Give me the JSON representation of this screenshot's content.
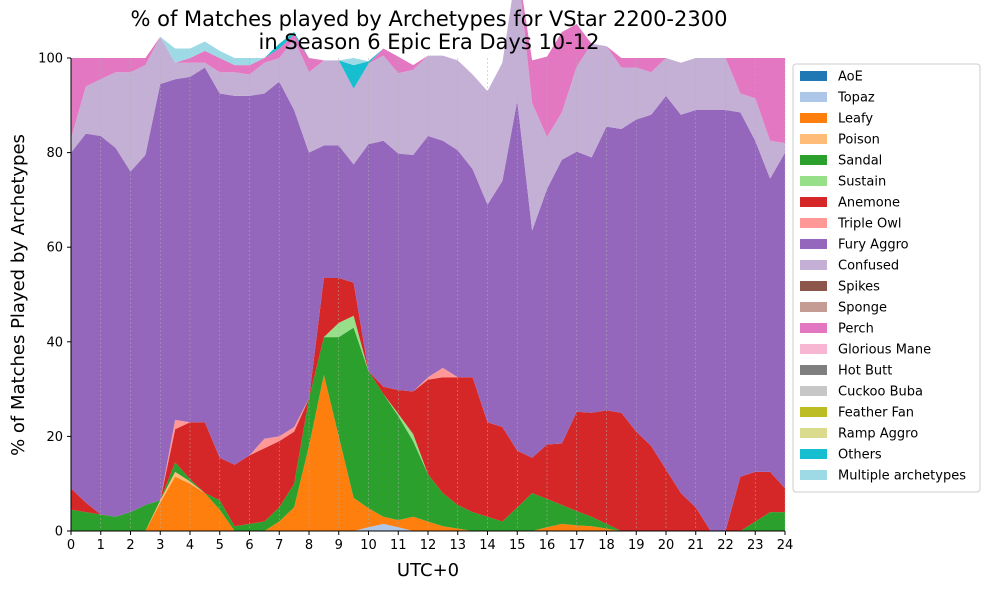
{
  "chart_data": {
    "type": "area",
    "title_lines": [
      "% of Matches played by Archetypes for VStar 2200-2300",
      "in Season 6 Epic Era Days 10-12"
    ],
    "xlabel": "UTC+0",
    "ylabel": "% of Matches Played by Archetypes",
    "xlim": [
      0,
      24
    ],
    "ylim": [
      0,
      100
    ],
    "xticks": [
      "0",
      "1",
      "2",
      "3",
      "4",
      "5",
      "6",
      "7",
      "8",
      "9",
      "10",
      "11",
      "12",
      "13",
      "14",
      "15",
      "16",
      "17",
      "18",
      "19",
      "20",
      "21",
      "22",
      "23",
      "24"
    ],
    "yticks": [
      "0",
      "20",
      "40",
      "60",
      "80",
      "100"
    ],
    "grid": "vertical dashed",
    "legend_position": "right",
    "x": [
      0,
      0.5,
      1,
      1.5,
      2,
      2.5,
      3,
      3.5,
      4,
      4.5,
      5,
      5.5,
      6,
      6.5,
      7,
      7.5,
      8,
      8.5,
      9,
      9.5,
      10,
      10.5,
      11,
      11.5,
      12,
      12.5,
      13,
      13.5,
      14,
      14.5,
      15,
      15.5,
      16,
      16.5,
      17,
      17.5,
      18,
      18.5,
      19,
      19.5,
      20,
      20.5,
      21,
      21.5,
      22,
      22.5,
      23,
      23.5,
      24
    ],
    "series": [
      {
        "name": "AoE",
        "color": "#1f77b4",
        "values": [
          0,
          0,
          0,
          0,
          0,
          0,
          0,
          0,
          0,
          0,
          0,
          0,
          0,
          0,
          0,
          0,
          0,
          0,
          0,
          0,
          0,
          0,
          0,
          0,
          0,
          0,
          0,
          0,
          0,
          0,
          0,
          0,
          0,
          0,
          0,
          0,
          0,
          0,
          0,
          0,
          0,
          0,
          0,
          0,
          0,
          0,
          0,
          0,
          0
        ]
      },
      {
        "name": "Topaz",
        "color": "#aec7e8",
        "values": [
          0,
          0,
          0,
          0,
          0,
          0,
          0,
          0,
          0,
          0,
          0,
          0,
          0,
          0,
          0,
          0,
          0,
          0,
          0,
          0,
          0.8,
          1.5,
          0.8,
          0,
          0,
          0,
          0,
          0,
          0,
          0,
          0,
          0,
          0,
          0,
          0,
          0,
          0,
          0,
          0,
          0,
          0,
          0,
          0,
          0,
          0,
          0,
          0,
          0,
          0
        ]
      },
      {
        "name": "Leafy",
        "color": "#ff7f0e",
        "values": [
          0,
          0,
          0,
          0,
          0,
          0,
          6,
          11.5,
          10,
          8,
          4.5,
          0,
          0,
          0,
          2,
          5,
          18,
          33,
          20,
          7,
          4,
          1.5,
          1.5,
          3,
          2,
          1,
          0.5,
          0,
          0,
          0,
          0,
          0,
          0.8,
          1.5,
          1.2,
          1,
          0.5,
          0,
          0,
          0,
          0,
          0,
          0,
          0,
          0,
          0,
          0,
          0,
          0
        ]
      },
      {
        "name": "Poison",
        "color": "#ffbb78",
        "values": [
          0,
          0,
          0,
          0,
          0,
          0,
          0.5,
          1,
          0.5,
          0,
          0,
          0,
          0,
          0,
          0,
          0,
          0,
          0,
          0,
          0,
          0,
          0,
          0,
          0,
          0,
          0,
          0,
          0,
          0,
          0,
          0,
          0,
          0,
          0,
          0,
          0,
          0,
          0,
          0,
          0,
          0,
          0,
          0,
          0,
          0,
          0,
          0,
          0,
          0
        ]
      },
      {
        "name": "Sandal",
        "color": "#2ca02c",
        "values": [
          4.5,
          4,
          3.5,
          3,
          4,
          5.5,
          0,
          2,
          0.5,
          0,
          2,
          1,
          1.5,
          2,
          3,
          5,
          10,
          8,
          21,
          36,
          29,
          26,
          22,
          16,
          10,
          7,
          5,
          4,
          3,
          2,
          5,
          8,
          6,
          4,
          3,
          2,
          1,
          0,
          0,
          0,
          0,
          0,
          0,
          0,
          0,
          0,
          2,
          4,
          4
        ]
      },
      {
        "name": "Sustain",
        "color": "#98df8a",
        "values": [
          0,
          0,
          0,
          0,
          0,
          0,
          0,
          0,
          0,
          0,
          0,
          0,
          0,
          0,
          0,
          0,
          0,
          0,
          3,
          2.5,
          0,
          0,
          0.5,
          1.5,
          0,
          0,
          0,
          0,
          0,
          0,
          0,
          0,
          0,
          0,
          0,
          0,
          0,
          0,
          0,
          0,
          0,
          0,
          0,
          0,
          0,
          0,
          0,
          0,
          0
        ]
      },
      {
        "name": "Anemone",
        "color": "#d62728",
        "values": [
          4.5,
          2,
          0,
          0,
          0,
          0,
          0,
          7,
          12,
          15,
          9,
          13,
          14.5,
          15.5,
          14,
          11,
          0,
          12.5,
          9.5,
          7,
          0,
          1.5,
          5,
          9,
          20,
          24.5,
          27,
          28.5,
          20,
          20,
          12,
          7.5,
          11.5,
          13,
          21,
          22,
          24,
          25,
          21,
          18,
          13,
          8,
          5,
          0,
          0,
          11.5,
          10.5,
          8.5,
          5
        ]
      },
      {
        "name": "Triple Owl",
        "color": "#ff9896",
        "values": [
          0,
          0,
          0,
          0,
          0,
          0,
          0,
          2,
          0,
          0,
          0,
          0,
          0,
          2,
          1,
          1,
          0,
          0,
          0,
          0,
          0,
          0,
          0,
          0,
          0.5,
          2,
          0,
          0,
          0,
          0,
          0,
          0,
          0,
          0,
          0,
          0,
          0,
          0,
          0,
          0,
          0,
          0,
          0,
          0,
          0,
          0,
          0,
          0,
          0
        ]
      },
      {
        "name": "Fury Aggro",
        "color": "#9467bd",
        "values": [
          71,
          78,
          80,
          78,
          72,
          74,
          88,
          72,
          73,
          75,
          77,
          78,
          76,
          73,
          75,
          67,
          52,
          28,
          28,
          25,
          48,
          52,
          50,
          50,
          51,
          48,
          48,
          44,
          46,
          52,
          74,
          48,
          54,
          60,
          55,
          54,
          60,
          60,
          66,
          70,
          79,
          80,
          84,
          89,
          89,
          77,
          70,
          62,
          71
        ]
      },
      {
        "name": "Confused",
        "color": "#c5b0d5",
        "values": [
          3,
          10,
          12,
          16,
          21,
          19,
          10,
          3.5,
          3,
          1,
          4.5,
          5,
          4.5,
          6.5,
          5,
          15,
          17,
          18,
          18,
          16,
          17,
          18,
          17,
          18,
          17,
          18,
          19,
          20,
          24,
          25,
          29,
          27,
          11,
          10,
          18,
          24,
          17,
          13,
          11,
          9,
          8,
          11,
          11,
          11,
          11,
          4,
          9,
          8,
          2
        ]
      },
      {
        "name": "Spikes",
        "color": "#8c564b",
        "values": [
          0,
          0,
          0,
          0,
          0,
          0,
          0,
          0,
          0,
          0,
          0,
          0,
          0,
          0,
          0,
          0,
          0,
          0,
          0,
          0,
          0,
          0,
          0,
          0,
          0,
          0,
          0,
          0,
          0,
          0,
          0,
          0,
          0,
          0,
          0,
          0,
          0,
          0,
          0,
          0,
          0,
          0,
          0,
          0,
          0,
          0,
          0,
          0,
          0
        ]
      },
      {
        "name": "Sponge",
        "color": "#c49c94",
        "values": [
          0,
          0,
          0,
          0,
          0,
          0,
          0,
          0,
          0,
          0,
          0,
          0,
          0,
          0,
          0,
          0,
          0,
          0,
          0,
          0,
          0,
          0,
          0,
          0,
          0,
          0,
          0,
          0,
          0,
          0,
          0,
          0,
          0,
          0,
          0,
          0,
          0,
          0,
          0,
          0,
          0,
          0,
          0,
          0,
          0,
          0,
          0,
          0,
          0
        ]
      },
      {
        "name": "Perch",
        "color": "#e377c2",
        "values": [
          17,
          6,
          4.5,
          3,
          3,
          1.5,
          0,
          0,
          1,
          2.5,
          3,
          1.5,
          2,
          1,
          2,
          1,
          3,
          0,
          0,
          0,
          0,
          1.5,
          3.5,
          1,
          0,
          0,
          0,
          0,
          0,
          0,
          0,
          9,
          17,
          17,
          9,
          0,
          0,
          2,
          2,
          3,
          0,
          0,
          0,
          0,
          0,
          7.5,
          8.5,
          17.5,
          18
        ]
      },
      {
        "name": "Glorious Mane",
        "color": "#f7b6d2",
        "values": [
          0,
          0,
          0,
          0,
          0,
          0,
          0,
          0,
          0,
          0,
          0,
          0,
          0,
          0,
          0,
          0,
          0,
          0,
          0,
          0,
          0,
          0,
          0,
          0,
          0,
          0,
          0,
          0,
          0,
          0,
          0,
          0,
          0,
          0,
          0,
          0,
          0,
          0,
          0,
          0,
          0,
          0,
          0,
          0,
          0,
          0,
          0,
          0,
          0
        ]
      },
      {
        "name": "Hot Butt",
        "color": "#7f7f7f",
        "values": [
          0,
          0,
          0,
          0,
          0,
          0,
          0,
          0,
          0,
          0,
          0,
          0,
          0,
          0,
          0,
          0,
          0,
          0,
          0,
          0,
          0,
          0,
          0,
          0,
          0,
          0,
          0,
          0,
          0,
          0,
          0,
          0,
          0,
          0,
          0,
          0,
          0,
          0,
          0,
          0,
          0,
          0,
          0,
          0,
          0,
          0,
          0,
          0,
          0
        ]
      },
      {
        "name": "Cuckoo Buba",
        "color": "#c7c7c7",
        "values": [
          0,
          0,
          0,
          0,
          0,
          0,
          0,
          0,
          0,
          0,
          0,
          0,
          0,
          0,
          0,
          0,
          0,
          0,
          0,
          0,
          0,
          0,
          0,
          0,
          0,
          0,
          0,
          0,
          0,
          0,
          0,
          0,
          0,
          0,
          0,
          0,
          0,
          0,
          0,
          0,
          0,
          0,
          0,
          0,
          0,
          0,
          0,
          0,
          0
        ]
      },
      {
        "name": "Feather Fan",
        "color": "#bcbd22",
        "values": [
          0,
          0,
          0,
          0,
          0,
          0,
          0,
          0,
          0,
          0,
          0,
          0,
          0,
          0,
          0,
          0,
          0,
          0,
          0,
          0,
          0,
          0,
          0,
          0,
          0,
          0,
          0,
          0,
          0,
          0,
          0,
          0,
          0,
          0,
          0,
          0,
          0,
          0,
          0,
          0,
          0,
          0,
          0,
          0,
          0,
          0,
          0,
          0,
          0
        ]
      },
      {
        "name": "Ramp Aggro",
        "color": "#dbdb8d",
        "values": [
          0,
          0,
          0,
          0,
          0,
          0,
          0,
          0,
          0,
          0,
          0,
          0,
          0,
          0,
          0,
          0,
          0,
          0,
          0,
          0,
          0,
          0,
          0,
          0,
          0,
          0,
          0,
          0,
          0,
          0,
          0,
          0,
          0,
          0,
          0,
          0,
          0,
          0,
          0,
          0,
          0,
          0,
          0,
          0,
          0,
          0,
          0,
          0,
          0
        ]
      },
      {
        "name": "Others",
        "color": "#17becf",
        "values": [
          0,
          0,
          0,
          0,
          0,
          0,
          0,
          0,
          0,
          0,
          0,
          0,
          0,
          0,
          1,
          0.5,
          0,
          0,
          0,
          5,
          0.5,
          0,
          0,
          0,
          0,
          0,
          0,
          0,
          0,
          0,
          0,
          0,
          0,
          0,
          0,
          0,
          0,
          0,
          0,
          0,
          0,
          0,
          0,
          0,
          0,
          0,
          0,
          0,
          0
        ]
      },
      {
        "name": "Multiple archetypes",
        "color": "#9edae5",
        "values": [
          0,
          0,
          0,
          0,
          0,
          0,
          0,
          3,
          2,
          2,
          1.5,
          1.5,
          1.5,
          0,
          0,
          0,
          0,
          0,
          0,
          1.5,
          0,
          0,
          0,
          0,
          0,
          0,
          0,
          0,
          0,
          0,
          0,
          0,
          0,
          0,
          0,
          0,
          0,
          0,
          0,
          0,
          0,
          0,
          0,
          0,
          0,
          0,
          0,
          0,
          0
        ]
      }
    ]
  }
}
